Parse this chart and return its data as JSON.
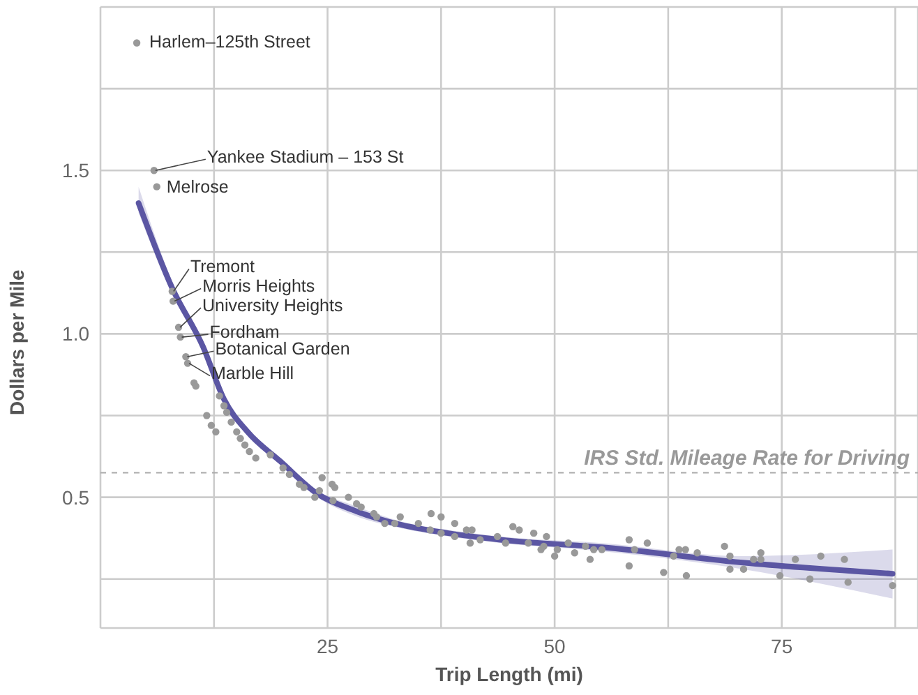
{
  "chart_data": {
    "type": "scatter",
    "xlabel": "Trip Length (mi)",
    "ylabel": "Dollars per Mile",
    "xlim": [
      0,
      90
    ],
    "ylim": [
      0.1,
      2.0
    ],
    "xticks": [
      {
        "value": 0,
        "label": null
      },
      {
        "value": 12.5,
        "label": null
      },
      25,
      {
        "value": 37.5,
        "label": null
      },
      50,
      {
        "value": 62.5,
        "label": null
      },
      75,
      {
        "value": 87.5,
        "label": null
      }
    ],
    "yticks": [
      {
        "value": 0.25,
        "label": null
      },
      0.5,
      {
        "value": 0.75,
        "label": null
      },
      {
        "value": 1,
        "label": "1.0"
      },
      {
        "value": 1.25,
        "label": null
      },
      1.5,
      {
        "value": 1.75,
        "label": null
      }
    ],
    "grid": true,
    "series": [
      {
        "color": "#999999",
        "marker": "circle",
        "x": [
          4.0,
          5.9,
          6.2,
          7.9,
          8.0,
          8.6,
          8.8,
          9.4,
          9.6,
          10.3,
          10.5,
          11.7,
          12.2,
          12.7,
          13.1,
          13.6,
          13.9,
          14.4,
          15.0,
          15.4,
          15.9,
          16.4,
          17.1,
          18.7,
          20.1,
          20.8,
          21.9,
          22.4,
          23.6,
          24.4,
          24.1,
          25.5,
          25.8,
          25.6,
          27.3,
          28.2,
          28.7,
          30.1,
          30.4,
          31.3,
          32.4,
          33.0,
          35.0,
          36.4,
          37.5,
          36.3,
          37.5,
          39.0,
          39.0,
          40.3,
          40.9,
          40.7,
          41.8,
          43.7,
          44.6,
          45.4,
          46.1,
          47.1,
          47.7,
          48.5,
          48.8,
          49.1,
          50.0,
          50.3,
          51.5,
          52.2,
          53.4,
          53.9,
          54.3,
          55.2,
          58.2,
          58.2,
          58.8,
          60.2,
          62.0,
          63.1,
          63.7,
          64.4,
          64.5,
          65.7,
          68.7,
          69.3,
          69.3,
          70.8,
          71.9,
          72.7,
          72.7,
          74.8,
          76.5,
          78.1,
          79.3,
          81.9,
          82.3,
          87.2
        ],
        "values": [
          1.89,
          1.5,
          1.45,
          1.13,
          1.1,
          1.02,
          0.99,
          0.93,
          0.91,
          0.85,
          0.84,
          0.75,
          0.72,
          0.7,
          0.81,
          0.78,
          0.76,
          0.73,
          0.7,
          0.68,
          0.66,
          0.64,
          0.62,
          0.63,
          0.59,
          0.57,
          0.54,
          0.53,
          0.5,
          0.56,
          0.52,
          0.54,
          0.53,
          0.49,
          0.5,
          0.48,
          0.47,
          0.45,
          0.44,
          0.42,
          0.42,
          0.44,
          0.42,
          0.45,
          0.44,
          0.4,
          0.39,
          0.42,
          0.38,
          0.4,
          0.4,
          0.36,
          0.37,
          0.38,
          0.36,
          0.41,
          0.4,
          0.36,
          0.39,
          0.34,
          0.35,
          0.38,
          0.32,
          0.34,
          0.36,
          0.33,
          0.35,
          0.31,
          0.34,
          0.34,
          0.37,
          0.29,
          0.34,
          0.36,
          0.27,
          0.32,
          0.34,
          0.34,
          0.26,
          0.33,
          0.35,
          0.32,
          0.28,
          0.28,
          0.31,
          0.31,
          0.33,
          0.26,
          0.31,
          0.25,
          0.32,
          0.31,
          0.24,
          0.23
        ]
      },
      {
        "type": "line",
        "color": "#5b56a3",
        "x": [
          4.2,
          7.9,
          11.3,
          13.6,
          16.2,
          19.8,
          23.9,
          27.9,
          33.2,
          38.3,
          44.0,
          55.2,
          70.7,
          87.2
        ],
        "values": [
          1.4,
          1.14,
          0.96,
          0.8,
          0.7,
          0.61,
          0.51,
          0.46,
          0.415,
          0.39,
          0.37,
          0.347,
          0.3,
          0.266
        ],
        "lower": [
          1.37,
          1.12,
          0.945,
          0.79,
          0.69,
          0.6,
          0.5,
          0.445,
          0.405,
          0.38,
          0.36,
          0.335,
          0.28,
          0.19
        ],
        "upper": [
          1.45,
          1.16,
          0.975,
          0.81,
          0.71,
          0.62,
          0.52,
          0.475,
          0.425,
          0.4,
          0.38,
          0.36,
          0.32,
          0.34
        ]
      }
    ],
    "ref_lines": [
      {
        "axis": "y",
        "value": 0.575,
        "label": "IRS Std. Mileage Rate for Driving",
        "color": "#aaaaaa",
        "line_style": "dashed"
      }
    ],
    "annotations": [
      {
        "text": "Harlem–125th Street",
        "x": 4.0,
        "y": 1.89
      },
      {
        "text": "Yankee Stadium – 153 St",
        "x": 5.9,
        "y": 1.5
      },
      {
        "text": "Melrose",
        "x": 6.2,
        "y": 1.45
      },
      {
        "text": "Tremont",
        "x": 7.9,
        "y": 1.13
      },
      {
        "text": "Morris Heights",
        "x": 8.0,
        "y": 1.1
      },
      {
        "text": "University Heights",
        "x": 8.6,
        "y": 1.02
      },
      {
        "text": "Fordham",
        "x": 8.8,
        "y": 0.99
      },
      {
        "text": "Botanical Garden",
        "x": 9.4,
        "y": 0.93
      },
      {
        "text": "Marble Hill",
        "x": 9.6,
        "y": 0.91
      }
    ]
  }
}
